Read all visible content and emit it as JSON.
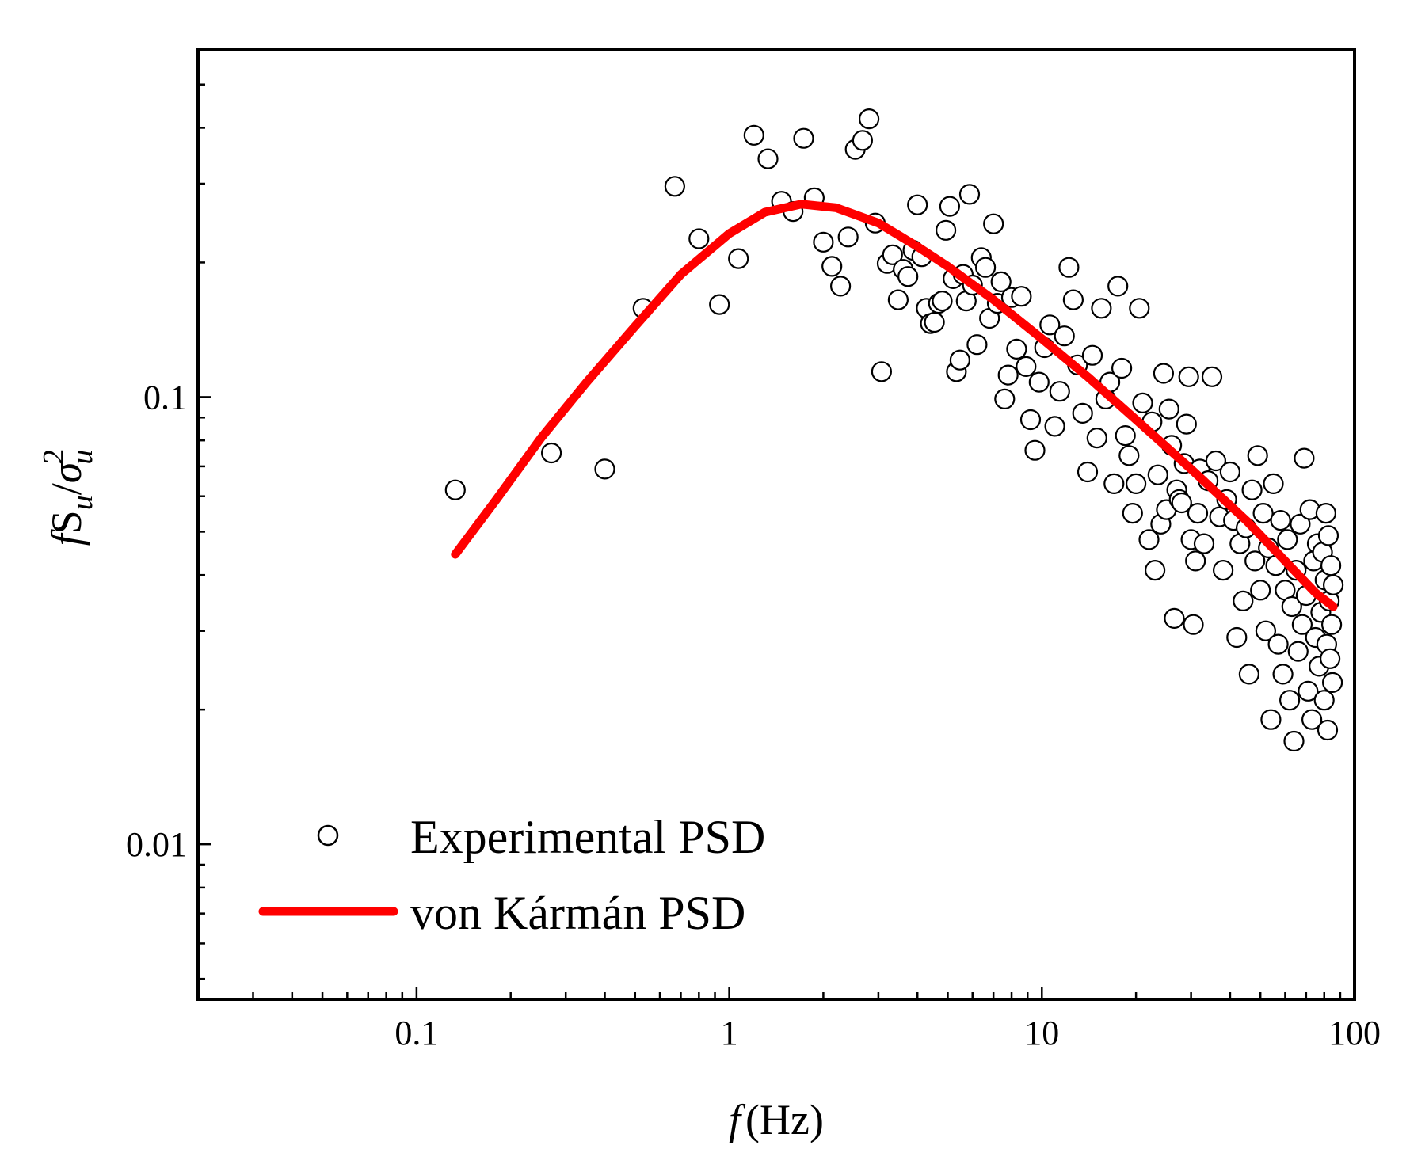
{
  "chart_data": {
    "type": "scatter",
    "title": "",
    "xlabel": {
      "symbol": "f",
      "unit": "(Hz)"
    },
    "ylabel": {
      "f": "f",
      "S": "S",
      "sub_u": "u",
      "slash": "/",
      "sigma": "σ",
      "sup_2": "2"
    },
    "xscale": "log",
    "yscale": "log",
    "xlim": [
      0.02,
      100
    ],
    "ylim": [
      0.0045,
      0.6
    ],
    "x_ticks": [
      {
        "value": 0.1,
        "label": "0.1"
      },
      {
        "value": 1,
        "label": "1"
      },
      {
        "value": 10,
        "label": "10"
      },
      {
        "value": 100,
        "label": "100"
      }
    ],
    "y_ticks": [
      {
        "value": 0.01,
        "label": "0.01"
      },
      {
        "value": 0.1,
        "label": "0.1"
      }
    ],
    "legend": {
      "position": "bottom-left",
      "entries": [
        {
          "label": "Experimental PSD",
          "marker": "open-circle"
        },
        {
          "label": "von Kármán PSD",
          "marker": "red-line"
        }
      ]
    },
    "series": [
      {
        "name": "Experimental PSD",
        "kind": "scatter",
        "color": "#000000",
        "points": [
          [
            0.133,
            0.062
          ],
          [
            0.27,
            0.075
          ],
          [
            0.4,
            0.069
          ],
          [
            0.53,
            0.158
          ],
          [
            0.67,
            0.296
          ],
          [
            0.8,
            0.226
          ],
          [
            0.93,
            0.161
          ],
          [
            1.07,
            0.204
          ],
          [
            1.2,
            0.385
          ],
          [
            1.33,
            0.341
          ],
          [
            1.47,
            0.274
          ],
          [
            1.6,
            0.26
          ],
          [
            1.73,
            0.379
          ],
          [
            1.87,
            0.279
          ],
          [
            2.0,
            0.222
          ],
          [
            2.13,
            0.196
          ],
          [
            2.27,
            0.177
          ],
          [
            2.4,
            0.228
          ],
          [
            2.53,
            0.358
          ],
          [
            2.67,
            0.375
          ],
          [
            2.8,
            0.419
          ],
          [
            2.93,
            0.245
          ],
          [
            3.07,
            0.114
          ],
          [
            3.2,
            0.199
          ],
          [
            3.33,
            0.208
          ],
          [
            3.47,
            0.165
          ],
          [
            3.6,
            0.193
          ],
          [
            3.73,
            0.186
          ],
          [
            3.87,
            0.213
          ],
          [
            4.0,
            0.269
          ],
          [
            4.13,
            0.206
          ],
          [
            4.27,
            0.158
          ],
          [
            4.4,
            0.146
          ],
          [
            4.53,
            0.147
          ],
          [
            4.67,
            0.162
          ],
          [
            4.8,
            0.164
          ],
          [
            4.93,
            0.236
          ],
          [
            5.07,
            0.267
          ],
          [
            5.2,
            0.184
          ],
          [
            5.33,
            0.114
          ],
          [
            5.47,
            0.121
          ],
          [
            5.6,
            0.188
          ],
          [
            5.73,
            0.164
          ],
          [
            5.87,
            0.284
          ],
          [
            6.0,
            0.178
          ],
          [
            6.2,
            0.131
          ],
          [
            6.4,
            0.205
          ],
          [
            6.6,
            0.195
          ],
          [
            6.8,
            0.15
          ],
          [
            7.0,
            0.244
          ],
          [
            7.2,
            0.162
          ],
          [
            7.4,
            0.181
          ],
          [
            7.6,
            0.099
          ],
          [
            7.8,
            0.112
          ],
          [
            8.0,
            0.167
          ],
          [
            8.3,
            0.128
          ],
          [
            8.6,
            0.168
          ],
          [
            8.9,
            0.117
          ],
          [
            9.2,
            0.089
          ],
          [
            9.5,
            0.076
          ],
          [
            9.8,
            0.108
          ],
          [
            10.2,
            0.129
          ],
          [
            10.6,
            0.145
          ],
          [
            11.0,
            0.086
          ],
          [
            11.4,
            0.103
          ],
          [
            11.8,
            0.137
          ],
          [
            12.2,
            0.195
          ],
          [
            12.6,
            0.165
          ],
          [
            13.0,
            0.118
          ],
          [
            13.5,
            0.092
          ],
          [
            14.0,
            0.068
          ],
          [
            14.5,
            0.124
          ],
          [
            15.0,
            0.081
          ],
          [
            15.5,
            0.158
          ],
          [
            16.0,
            0.099
          ],
          [
            16.5,
            0.108
          ],
          [
            17.0,
            0.064
          ],
          [
            17.5,
            0.177
          ],
          [
            18.0,
            0.116
          ],
          [
            18.5,
            0.082
          ],
          [
            19.0,
            0.074
          ],
          [
            19.5,
            0.055
          ],
          [
            20.0,
            0.064
          ],
          [
            20.5,
            0.158
          ],
          [
            21.0,
            0.097
          ],
          [
            22.0,
            0.048
          ],
          [
            22.5,
            0.088
          ],
          [
            23.0,
            0.041
          ],
          [
            23.5,
            0.067
          ],
          [
            24.0,
            0.052
          ],
          [
            24.5,
            0.113
          ],
          [
            25.0,
            0.056
          ],
          [
            25.5,
            0.094
          ],
          [
            26.0,
            0.078
          ],
          [
            26.5,
            0.032
          ],
          [
            27.0,
            0.062
          ],
          [
            27.5,
            0.059
          ],
          [
            28.0,
            0.058
          ],
          [
            28.5,
            0.071
          ],
          [
            29.0,
            0.087
          ],
          [
            29.5,
            0.111
          ],
          [
            30.0,
            0.048
          ],
          [
            30.5,
            0.031
          ],
          [
            31.0,
            0.043
          ],
          [
            31.5,
            0.055
          ],
          [
            32.0,
            0.069
          ],
          [
            33.0,
            0.047
          ],
          [
            34.0,
            0.065
          ],
          [
            35.0,
            0.111
          ],
          [
            36.0,
            0.072
          ],
          [
            37.0,
            0.054
          ],
          [
            38.0,
            0.041
          ],
          [
            39.0,
            0.059
          ],
          [
            40.0,
            0.068
          ],
          [
            41.0,
            0.053
          ],
          [
            42.0,
            0.029
          ],
          [
            43.0,
            0.047
          ],
          [
            44.0,
            0.035
          ],
          [
            45.0,
            0.051
          ],
          [
            46.0,
            0.024
          ],
          [
            47.0,
            0.062
          ],
          [
            48.0,
            0.043
          ],
          [
            49.0,
            0.074
          ],
          [
            50.0,
            0.037
          ],
          [
            51.0,
            0.055
          ],
          [
            52.0,
            0.03
          ],
          [
            53.0,
            0.046
          ],
          [
            54.0,
            0.019
          ],
          [
            55.0,
            0.064
          ],
          [
            56.0,
            0.042
          ],
          [
            57.0,
            0.028
          ],
          [
            58.0,
            0.053
          ],
          [
            59.0,
            0.024
          ],
          [
            60.0,
            0.037
          ],
          [
            61.0,
            0.048
          ],
          [
            62.0,
            0.021
          ],
          [
            63.0,
            0.034
          ],
          [
            64.0,
            0.017
          ],
          [
            65.0,
            0.041
          ],
          [
            66.0,
            0.027
          ],
          [
            67.0,
            0.052
          ],
          [
            68.0,
            0.031
          ],
          [
            69.0,
            0.073
          ],
          [
            70.0,
            0.036
          ],
          [
            71.0,
            0.022
          ],
          [
            72.0,
            0.056
          ],
          [
            73.0,
            0.019
          ],
          [
            74.0,
            0.043
          ],
          [
            75.0,
            0.029
          ],
          [
            76.0,
            0.047
          ],
          [
            77.0,
            0.025
          ],
          [
            78.0,
            0.033
          ],
          [
            79.0,
            0.045
          ],
          [
            80.0,
            0.021
          ],
          [
            80.5,
            0.039
          ],
          [
            81.0,
            0.055
          ],
          [
            81.5,
            0.028
          ],
          [
            82.0,
            0.018
          ],
          [
            82.5,
            0.049
          ],
          [
            83.0,
            0.035
          ],
          [
            83.5,
            0.026
          ],
          [
            84.0,
            0.042
          ],
          [
            84.5,
            0.031
          ],
          [
            85.0,
            0.023
          ],
          [
            85.5,
            0.038
          ]
        ]
      },
      {
        "name": "von Kármán PSD",
        "kind": "line",
        "color": "#ff0000",
        "points": [
          [
            0.133,
            0.0445
          ],
          [
            0.18,
            0.059
          ],
          [
            0.25,
            0.081
          ],
          [
            0.35,
            0.108
          ],
          [
            0.5,
            0.144
          ],
          [
            0.7,
            0.188
          ],
          [
            1.0,
            0.232
          ],
          [
            1.3,
            0.259
          ],
          [
            1.7,
            0.27
          ],
          [
            2.2,
            0.265
          ],
          [
            3.0,
            0.245
          ],
          [
            4.0,
            0.217
          ],
          [
            5.0,
            0.196
          ],
          [
            7.0,
            0.165
          ],
          [
            10.0,
            0.135
          ],
          [
            14.0,
            0.111
          ],
          [
            20.0,
            0.089
          ],
          [
            30.0,
            0.069
          ],
          [
            45.0,
            0.053
          ],
          [
            60.0,
            0.043
          ],
          [
            75.0,
            0.0365
          ],
          [
            85.5,
            0.034
          ]
        ]
      }
    ]
  }
}
